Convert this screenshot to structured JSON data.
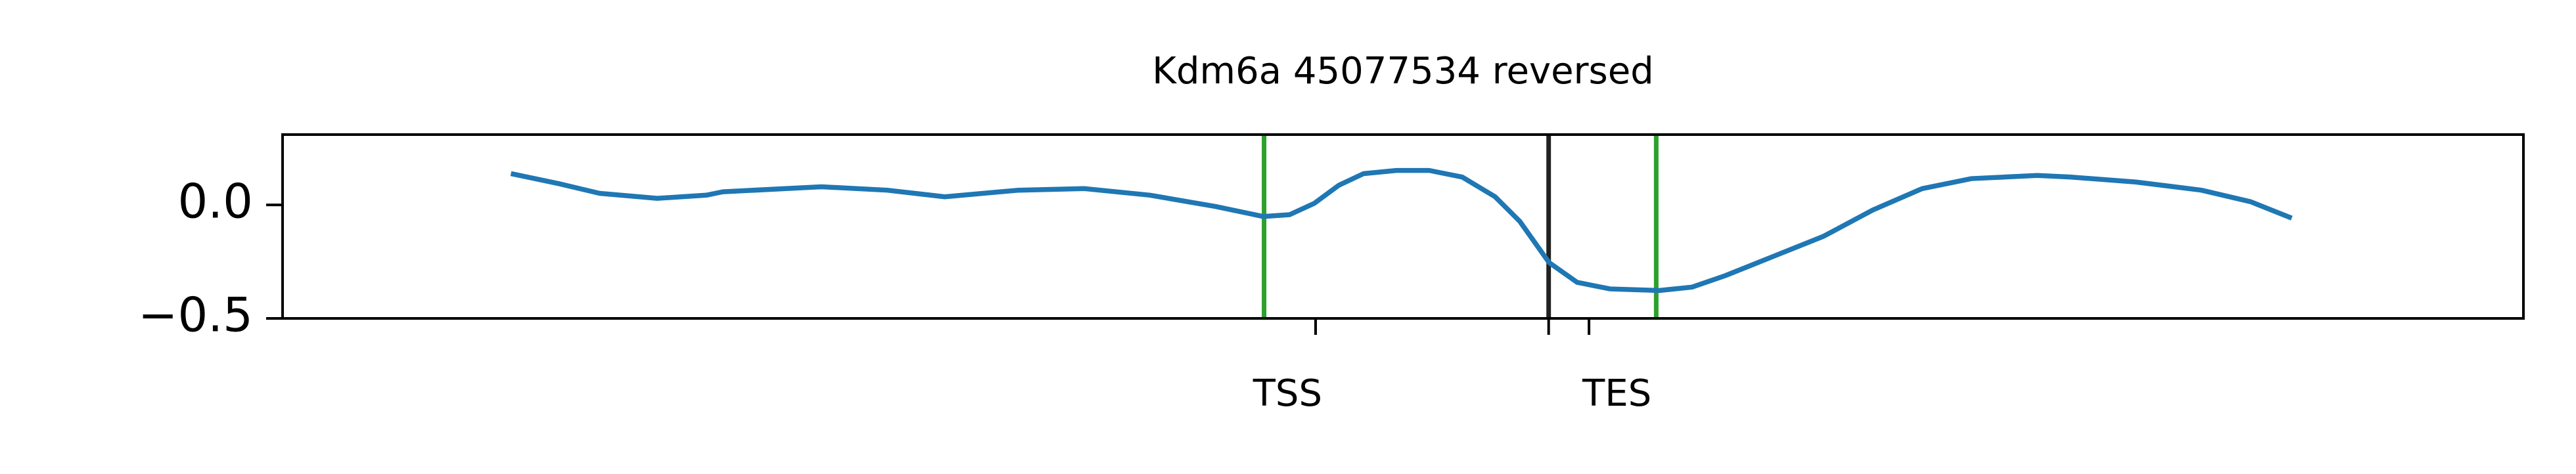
{
  "chart_data": {
    "type": "line",
    "title": "Kdm6a 45077534 reversed",
    "x": [
      10.19,
      12.32,
      14.15,
      16.72,
      18.91,
      19.65,
      24.05,
      26.98,
      29.55,
      32.84,
      35.78,
      38.71,
      41.64,
      43.77,
      44.94,
      46.04,
      47.14,
      48.24,
      49.71,
      51.17,
      52.64,
      54.11,
      55.21,
      56.52,
      57.77,
      59.24,
      61.44,
      62.9,
      64.37,
      66.57,
      68.77,
      70.97,
      73.17,
      75.37,
      78.3,
      79.77,
      82.7,
      85.63,
      87.83,
      89.66
    ],
    "series": [
      {
        "color": "#1f77b4",
        "values": [
          0.138,
          0.094,
          0.051,
          0.029,
          0.043,
          0.058,
          0.08,
          0.065,
          0.036,
          0.065,
          0.072,
          0.043,
          -0.007,
          -0.051,
          -0.043,
          0.007,
          0.087,
          0.138,
          0.152,
          0.152,
          0.123,
          0.036,
          -0.072,
          -0.254,
          -0.341,
          -0.37,
          -0.377,
          -0.362,
          -0.312,
          -0.225,
          -0.138,
          -0.022,
          0.072,
          0.116,
          0.13,
          0.123,
          0.101,
          0.065,
          0.014,
          -0.058
        ]
      }
    ],
    "xlim": [
      0,
      100
    ],
    "ylim": [
      -0.5,
      0.31
    ],
    "yticks": [
      {
        "value": -0.5,
        "label": "−0.5"
      },
      {
        "value": 0,
        "label": "0.0"
      }
    ],
    "xticks": [
      {
        "value": 46.1,
        "label": "TSS"
      },
      {
        "value": 56.5,
        "label": null
      },
      {
        "value": 58.3,
        "label": "TES"
      }
    ],
    "vlines": [
      {
        "x": 43.8,
        "color": "#2ca02c"
      },
      {
        "x": 56.5,
        "color": "#222222"
      },
      {
        "x": 61.3,
        "color": "#2ca02c"
      }
    ]
  }
}
